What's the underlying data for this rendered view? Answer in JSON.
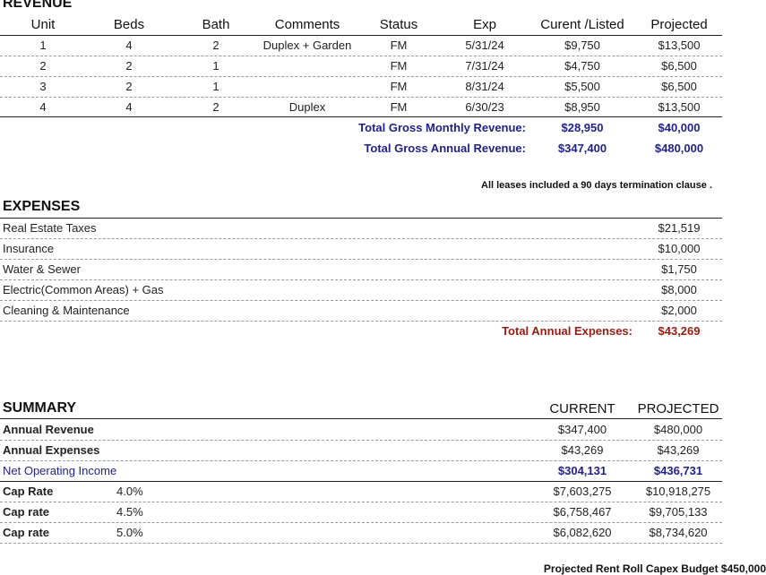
{
  "revenue": {
    "title": "REVENUE",
    "headers": {
      "unit": "Unit",
      "beds": "Beds",
      "bath": "Bath",
      "comments": "Comments",
      "status": "Status",
      "exp": "Exp",
      "current": "Curent  /Listed",
      "projected": "Projected"
    },
    "rows": [
      {
        "unit": "1",
        "beds": "4",
        "bath": "2",
        "comments": "Duplex + Garden",
        "status": "FM",
        "exp": "5/31/24",
        "current": "$9,750",
        "projected": "$13,500"
      },
      {
        "unit": "2",
        "beds": "2",
        "bath": "1",
        "comments": "",
        "status": "FM",
        "exp": "7/31/24",
        "current": "$4,750",
        "projected": "$6,500"
      },
      {
        "unit": "3",
        "beds": "2",
        "bath": "1",
        "comments": "",
        "status": "FM",
        "exp": "8/31/24",
        "current": "$5,500",
        "projected": "$6,500"
      },
      {
        "unit": "4",
        "beds": "4",
        "bath": "2",
        "comments": "Duplex",
        "status": "FM",
        "exp": "6/30/23",
        "current": "$8,950",
        "projected": "$13,500"
      }
    ],
    "monthly": {
      "label": "Total  Gross Monthly Revenue:",
      "current": "$28,950",
      "projected": "$40,000"
    },
    "annual": {
      "label": "Total Gross Annual Revenue:",
      "current": "$347,400",
      "projected": "$480,000"
    },
    "note": "All leases included a 90 days termination clause ."
  },
  "expenses": {
    "title": "EXPENSES",
    "rows": [
      {
        "label": "Real Estate Taxes",
        "value": "$21,519"
      },
      {
        "label": "Insurance",
        "value": "$10,000"
      },
      {
        "label": "Water & Sewer",
        "value": "$1,750"
      },
      {
        "label": "Electric(Common Areas) + Gas",
        "value": "$8,000"
      },
      {
        "label": "Cleaning  & Maintenance",
        "value": "$2,000"
      }
    ],
    "total": {
      "label": "Total Annual Expenses:",
      "value": "$43,269"
    }
  },
  "summary": {
    "title": "SUMMARY",
    "col_current": "CURRENT",
    "col_projected": "PROJECTED",
    "revenue": {
      "label": "Annual Revenue",
      "current": "$347,400",
      "projected": "$480,000"
    },
    "expenses": {
      "label": "Annual Expenses",
      "current": "$43,269",
      "projected": "$43,269"
    },
    "noi": {
      "label": "Net Operating Income",
      "current": "$304,131",
      "projected": "$436,731"
    },
    "caps": [
      {
        "label": "Cap Rate",
        "rate": "4.0%",
        "current": "$7,603,275",
        "projected": "$10,918,275"
      },
      {
        "label": "Cap rate",
        "rate": "4.5%",
        "current": "$6,758,467",
        "projected": "$9,705,133"
      },
      {
        "label": "Cap rate",
        "rate": "5.0%",
        "current": "$6,082,620",
        "projected": "$8,734,620"
      }
    ]
  },
  "footer": "Projected Rent Roll Capex Budget $450,000"
}
